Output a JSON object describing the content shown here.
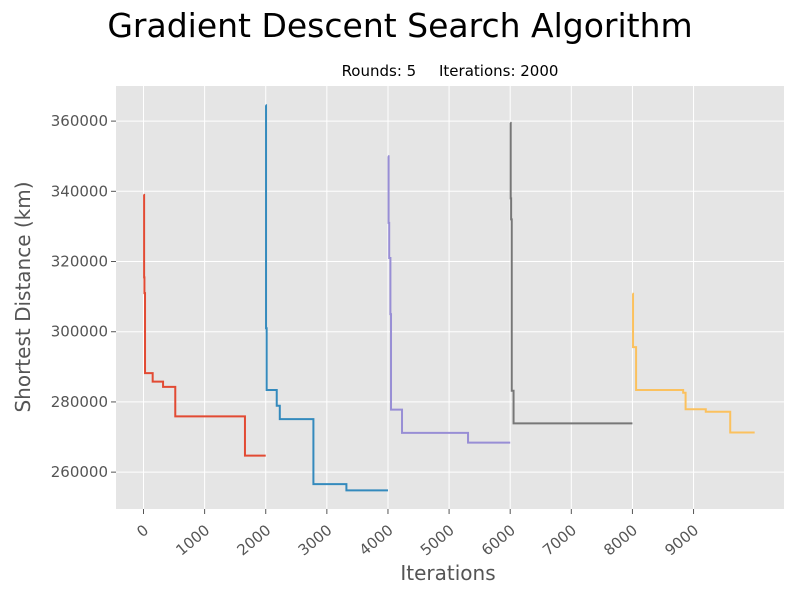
{
  "chart_data": {
    "type": "line",
    "title": "Gradient Descent Search Algorithm",
    "subtitle": {
      "rounds_label": "Rounds: 5",
      "iterations_label": "Iterations: 2000"
    },
    "xlabel": "Iterations",
    "ylabel": "Shortest Distance (km)",
    "xlim": [
      -450,
      10480
    ],
    "ylim": [
      249500,
      370000
    ],
    "x_ticks": [
      0,
      1000,
      2000,
      3000,
      4000,
      5000,
      6000,
      7000,
      8000,
      9000
    ],
    "y_ticks": [
      260000,
      280000,
      300000,
      320000,
      340000,
      360000
    ],
    "x_tick_labels": [
      "0",
      "1000",
      "2000",
      "3000",
      "4000",
      "5000",
      "6000",
      "7000",
      "8000",
      "9000"
    ],
    "y_tick_labels": [
      "260000",
      "280000",
      "300000",
      "320000",
      "340000",
      "360000"
    ],
    "grid": true,
    "colors": {
      "background": "#e5e5e5",
      "grid": "#ffffff",
      "tick_text": "#555555",
      "label_text": "#555555"
    },
    "series": [
      {
        "color": "#e24a33",
        "points": [
          [
            0,
            339000
          ],
          [
            10,
            339000
          ],
          [
            10,
            315500
          ],
          [
            15,
            315500
          ],
          [
            15,
            311000
          ],
          [
            25,
            311000
          ],
          [
            25,
            288200
          ],
          [
            150,
            288200
          ],
          [
            150,
            285800
          ],
          [
            320,
            285800
          ],
          [
            320,
            284300
          ],
          [
            520,
            284300
          ],
          [
            520,
            275900
          ],
          [
            1660,
            275900
          ],
          [
            1660,
            264700
          ],
          [
            2000,
            264700
          ]
        ]
      },
      {
        "color": "#348abd",
        "points": [
          [
            2000,
            364500
          ],
          [
            2005,
            364500
          ],
          [
            2005,
            301000
          ],
          [
            2015,
            301000
          ],
          [
            2015,
            283400
          ],
          [
            2180,
            283400
          ],
          [
            2180,
            278900
          ],
          [
            2230,
            278900
          ],
          [
            2230,
            275100
          ],
          [
            2780,
            275100
          ],
          [
            2780,
            256600
          ],
          [
            3320,
            256600
          ],
          [
            3320,
            254800
          ],
          [
            4000,
            254800
          ]
        ]
      },
      {
        "color": "#988ed5",
        "points": [
          [
            4000,
            350000
          ],
          [
            4010,
            350000
          ],
          [
            4010,
            331000
          ],
          [
            4020,
            331000
          ],
          [
            4020,
            321000
          ],
          [
            4040,
            321000
          ],
          [
            4040,
            305000
          ],
          [
            4050,
            305000
          ],
          [
            4050,
            277800
          ],
          [
            4230,
            277800
          ],
          [
            4230,
            271200
          ],
          [
            5310,
            271200
          ],
          [
            5310,
            268400
          ],
          [
            6000,
            268400
          ]
        ]
      },
      {
        "color": "#777777",
        "points": [
          [
            6000,
            359500
          ],
          [
            6008,
            359500
          ],
          [
            6008,
            338000
          ],
          [
            6015,
            338000
          ],
          [
            6015,
            332000
          ],
          [
            6025,
            332000
          ],
          [
            6025,
            283200
          ],
          [
            6055,
            283200
          ],
          [
            6055,
            273900
          ],
          [
            8000,
            273900
          ]
        ]
      },
      {
        "color": "#fbc15e",
        "points": [
          [
            8000,
            310800
          ],
          [
            8010,
            310800
          ],
          [
            8010,
            295600
          ],
          [
            8060,
            295600
          ],
          [
            8060,
            283400
          ],
          [
            8830,
            283400
          ],
          [
            8830,
            282600
          ],
          [
            8870,
            282600
          ],
          [
            8870,
            277900
          ],
          [
            9200,
            277900
          ],
          [
            9200,
            277200
          ],
          [
            9600,
            277200
          ],
          [
            9600,
            271300
          ],
          [
            10000,
            271300
          ]
        ]
      }
    ]
  }
}
